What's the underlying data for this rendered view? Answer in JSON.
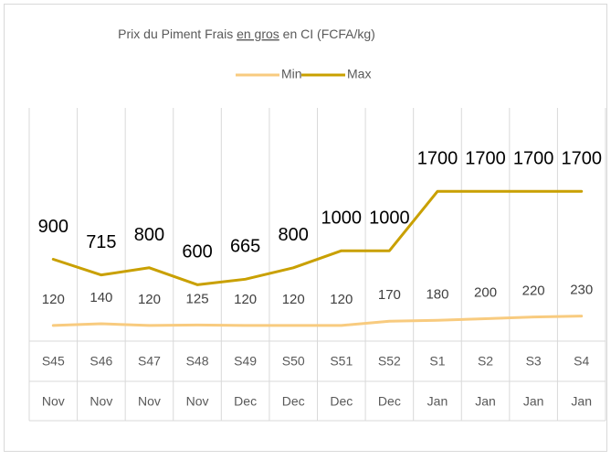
{
  "chart_data": {
    "type": "line",
    "title": [
      "Prix du Piment Frais ",
      "en gros",
      " en CI (FCFA/kg)"
    ],
    "categories": [
      [
        "S45",
        "Nov"
      ],
      [
        "S46",
        "Nov"
      ],
      [
        "S47",
        "Nov"
      ],
      [
        "S48",
        "Nov"
      ],
      [
        "S49",
        "Dec"
      ],
      [
        "S50",
        "Dec"
      ],
      [
        "S51",
        "Dec"
      ],
      [
        "S52",
        "Dec"
      ],
      [
        "S1",
        "Jan"
      ],
      [
        "S2",
        "Jan"
      ],
      [
        "S3",
        "Jan"
      ],
      [
        "S4",
        "Jan"
      ]
    ],
    "series": [
      {
        "name": "Min",
        "color": "#f8cb7f",
        "values": [
          120,
          140,
          120,
          125,
          120,
          120,
          120,
          170,
          180,
          200,
          220,
          230
        ]
      },
      {
        "name": "Max",
        "color": "#c9a000",
        "values": [
          900,
          715,
          800,
          600,
          665,
          800,
          1000,
          1000,
          1700,
          1700,
          1700,
          1700
        ]
      }
    ],
    "ylim": [
      0,
      1800
    ],
    "legend": "top"
  }
}
